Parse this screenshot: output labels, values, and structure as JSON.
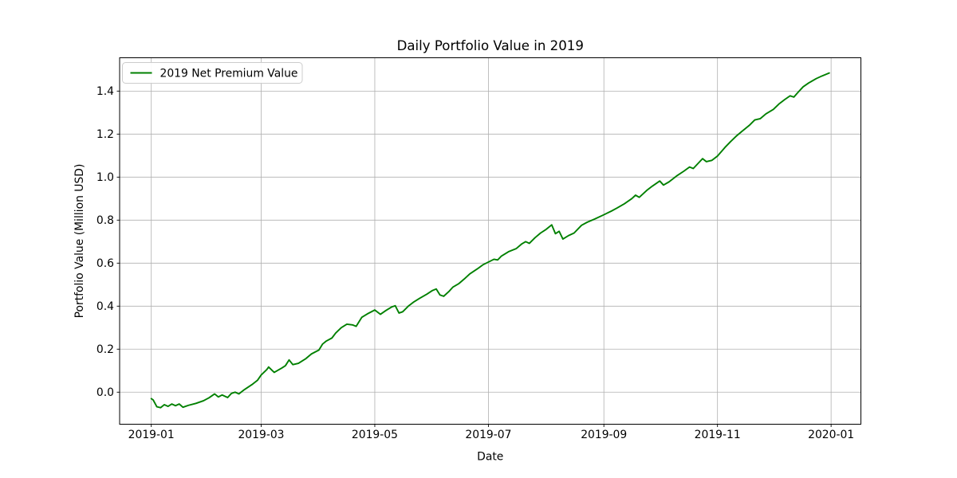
{
  "page": {
    "background_color": "#ffffff"
  },
  "chart_data": {
    "type": "line",
    "title": "Daily Portfolio Value in 2019",
    "xlabel": "Date",
    "ylabel": "Portfolio Value (Million USD)",
    "grid": true,
    "grid_color": "#b0b0b0",
    "axis_color": "#000000",
    "background_color": "#ffffff",
    "legend": {
      "position": "upper left",
      "border_color": "#cccccc",
      "background_color": "#ffffff",
      "entries": [
        {
          "label": "2019 Net Premium Value",
          "color": "#008000"
        }
      ]
    },
    "x_ticks": [
      {
        "label": "2019-01",
        "date": "2019-01-01"
      },
      {
        "label": "2019-03",
        "date": "2019-03-01"
      },
      {
        "label": "2019-05",
        "date": "2019-05-01"
      },
      {
        "label": "2019-07",
        "date": "2019-07-01"
      },
      {
        "label": "2019-09",
        "date": "2019-09-01"
      },
      {
        "label": "2019-11",
        "date": "2019-11-01"
      },
      {
        "label": "2020-01",
        "date": "2020-01-01"
      }
    ],
    "y_ticks": [
      0.0,
      0.2,
      0.4,
      0.6,
      0.8,
      1.0,
      1.2,
      1.4
    ],
    "xlim_dates": [
      "2018-12-15",
      "2020-01-17"
    ],
    "ylim": [
      -0.149,
      1.555
    ],
    "series": [
      {
        "name": "2019 Net Premium Value",
        "color": "#008000",
        "line_width": 1.9,
        "points": [
          [
            "2019-01-01",
            -0.03
          ],
          [
            "2019-01-02",
            -0.036
          ],
          [
            "2019-01-04",
            -0.068
          ],
          [
            "2019-01-06",
            -0.072
          ],
          [
            "2019-01-08",
            -0.058
          ],
          [
            "2019-01-10",
            -0.066
          ],
          [
            "2019-01-12",
            -0.055
          ],
          [
            "2019-01-14",
            -0.063
          ],
          [
            "2019-01-16",
            -0.055
          ],
          [
            "2019-01-18",
            -0.07
          ],
          [
            "2019-01-21",
            -0.061
          ],
          [
            "2019-01-25",
            -0.052
          ],
          [
            "2019-01-29",
            -0.04
          ],
          [
            "2019-02-01",
            -0.026
          ],
          [
            "2019-02-04",
            -0.008
          ],
          [
            "2019-02-06",
            -0.022
          ],
          [
            "2019-02-08",
            -0.013
          ],
          [
            "2019-02-11",
            -0.025
          ],
          [
            "2019-02-13",
            -0.006
          ],
          [
            "2019-02-15",
            0.0
          ],
          [
            "2019-02-17",
            -0.008
          ],
          [
            "2019-02-20",
            0.012
          ],
          [
            "2019-02-24",
            0.035
          ],
          [
            "2019-02-27",
            0.055
          ],
          [
            "2019-03-01",
            0.08
          ],
          [
            "2019-03-04",
            0.105
          ],
          [
            "2019-03-05",
            0.117
          ],
          [
            "2019-03-08",
            0.092
          ],
          [
            "2019-03-12",
            0.112
          ],
          [
            "2019-03-14",
            0.123
          ],
          [
            "2019-03-16",
            0.15
          ],
          [
            "2019-03-18",
            0.128
          ],
          [
            "2019-03-21",
            0.134
          ],
          [
            "2019-03-25",
            0.156
          ],
          [
            "2019-03-28",
            0.178
          ],
          [
            "2019-04-01",
            0.196
          ],
          [
            "2019-04-03",
            0.224
          ],
          [
            "2019-04-05",
            0.238
          ],
          [
            "2019-04-08",
            0.252
          ],
          [
            "2019-04-10",
            0.275
          ],
          [
            "2019-04-13",
            0.3
          ],
          [
            "2019-04-16",
            0.316
          ],
          [
            "2019-04-19",
            0.313
          ],
          [
            "2019-04-21",
            0.306
          ],
          [
            "2019-04-24",
            0.348
          ],
          [
            "2019-04-27",
            0.364
          ],
          [
            "2019-05-01",
            0.382
          ],
          [
            "2019-05-04",
            0.362
          ],
          [
            "2019-05-07",
            0.38
          ],
          [
            "2019-05-10",
            0.396
          ],
          [
            "2019-05-12",
            0.402
          ],
          [
            "2019-05-14",
            0.368
          ],
          [
            "2019-05-16",
            0.374
          ],
          [
            "2019-05-19",
            0.4
          ],
          [
            "2019-05-22",
            0.42
          ],
          [
            "2019-05-25",
            0.436
          ],
          [
            "2019-05-29",
            0.456
          ],
          [
            "2019-06-01",
            0.473
          ],
          [
            "2019-06-03",
            0.48
          ],
          [
            "2019-06-05",
            0.452
          ],
          [
            "2019-06-07",
            0.446
          ],
          [
            "2019-06-10",
            0.47
          ],
          [
            "2019-06-12",
            0.489
          ],
          [
            "2019-06-15",
            0.504
          ],
          [
            "2019-06-18",
            0.526
          ],
          [
            "2019-06-21",
            0.55
          ],
          [
            "2019-06-25",
            0.573
          ],
          [
            "2019-06-28",
            0.592
          ],
          [
            "2019-07-01",
            0.605
          ],
          [
            "2019-07-04",
            0.618
          ],
          [
            "2019-07-06",
            0.615
          ],
          [
            "2019-07-08",
            0.633
          ],
          [
            "2019-07-12",
            0.654
          ],
          [
            "2019-07-16",
            0.668
          ],
          [
            "2019-07-19",
            0.69
          ],
          [
            "2019-07-21",
            0.7
          ],
          [
            "2019-07-23",
            0.692
          ],
          [
            "2019-07-26",
            0.718
          ],
          [
            "2019-07-29",
            0.74
          ],
          [
            "2019-08-01",
            0.757
          ],
          [
            "2019-08-04",
            0.778
          ],
          [
            "2019-08-06",
            0.737
          ],
          [
            "2019-08-08",
            0.748
          ],
          [
            "2019-08-10",
            0.712
          ],
          [
            "2019-08-13",
            0.728
          ],
          [
            "2019-08-16",
            0.74
          ],
          [
            "2019-08-20",
            0.776
          ],
          [
            "2019-08-23",
            0.79
          ],
          [
            "2019-08-27",
            0.805
          ],
          [
            "2019-09-01",
            0.825
          ],
          [
            "2019-09-05",
            0.842
          ],
          [
            "2019-09-08",
            0.856
          ],
          [
            "2019-09-12",
            0.876
          ],
          [
            "2019-09-16",
            0.9
          ],
          [
            "2019-09-18",
            0.916
          ],
          [
            "2019-09-20",
            0.906
          ],
          [
            "2019-09-24",
            0.938
          ],
          [
            "2019-09-27",
            0.958
          ],
          [
            "2019-10-01",
            0.982
          ],
          [
            "2019-10-03",
            0.963
          ],
          [
            "2019-10-06",
            0.978
          ],
          [
            "2019-10-10",
            1.005
          ],
          [
            "2019-10-14",
            1.028
          ],
          [
            "2019-10-17",
            1.047
          ],
          [
            "2019-10-19",
            1.04
          ],
          [
            "2019-10-24",
            1.086
          ],
          [
            "2019-10-26",
            1.072
          ],
          [
            "2019-10-29",
            1.078
          ],
          [
            "2019-11-01",
            1.098
          ],
          [
            "2019-11-05",
            1.138
          ],
          [
            "2019-11-08",
            1.165
          ],
          [
            "2019-11-11",
            1.19
          ],
          [
            "2019-11-14",
            1.212
          ],
          [
            "2019-11-18",
            1.24
          ],
          [
            "2019-11-21",
            1.266
          ],
          [
            "2019-11-24",
            1.272
          ],
          [
            "2019-11-27",
            1.294
          ],
          [
            "2019-12-01",
            1.315
          ],
          [
            "2019-12-04",
            1.34
          ],
          [
            "2019-12-07",
            1.36
          ],
          [
            "2019-12-10",
            1.378
          ],
          [
            "2019-12-12",
            1.372
          ],
          [
            "2019-12-14",
            1.392
          ],
          [
            "2019-12-17",
            1.42
          ],
          [
            "2019-12-20",
            1.438
          ],
          [
            "2019-12-24",
            1.458
          ],
          [
            "2019-12-27",
            1.47
          ],
          [
            "2019-12-31",
            1.484
          ]
        ]
      }
    ]
  }
}
